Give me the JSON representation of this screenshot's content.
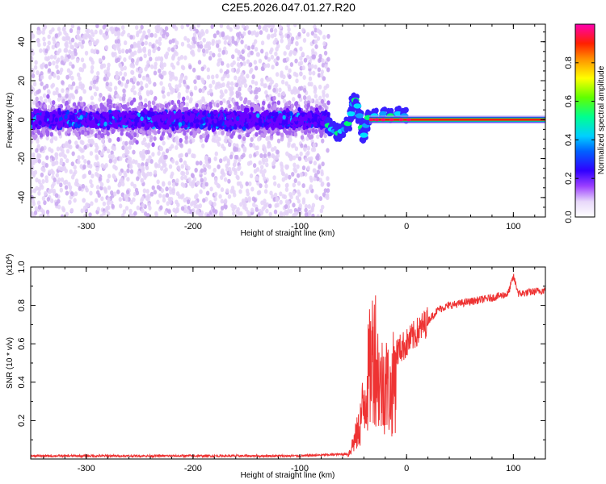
{
  "title": "C2E5.2026.047.01.27.R20",
  "chart_data": [
    {
      "type": "heatmap",
      "xlabel": "Height of straight line (km)",
      "ylabel": "Frequency (Hz)",
      "xlim": [
        -352,
        130
      ],
      "ylim": [
        -50,
        49
      ],
      "xticks": [
        -300,
        -200,
        -100,
        0,
        100
      ],
      "yticks": [
        -40,
        -20,
        0,
        20,
        40
      ],
      "colorbar": {
        "label": "Normalized spectral amplitude",
        "range": [
          0,
          1
        ],
        "ticks": [
          "0.0",
          "0.2",
          "0.4",
          "0.6",
          "0.8"
        ],
        "tick_values": [
          0,
          0.2,
          0.4,
          0.6,
          0.8
        ],
        "colors": [
          "#ffffff",
          "#c8a0f0",
          "#7b00ff",
          "#0000ff",
          "#00c8ff",
          "#00ff80",
          "#80ff00",
          "#ffff00",
          "#ff8000",
          "#ff0000",
          "#ff00a0"
        ]
      },
      "regions": [
        {
          "name": "noise",
          "x_range": [
            -352,
            -73
          ],
          "signal_band_hz": [
            -12,
            12
          ],
          "scatter_hz": [
            -50,
            49
          ]
        },
        {
          "name": "transition",
          "x_range": [
            -73,
            -35
          ]
        },
        {
          "name": "carrier",
          "x_range": [
            -35,
            130
          ],
          "frequency_hz": 0
        }
      ]
    },
    {
      "type": "line",
      "xlabel": "Height of straight line (km)",
      "ylabel": "SNR (10 * v/v)",
      "y_multiplier": "(x10^4)",
      "xlim": [
        -352,
        130
      ],
      "ylim": [
        0,
        1.0
      ],
      "xticks": [
        -300,
        -200,
        -100,
        0,
        100
      ],
      "yticks": [
        0.2,
        0.4,
        0.6,
        0.8,
        1.0
      ],
      "series_color": "#ee3333",
      "envelope_points": [
        [
          -352,
          0.01
        ],
        [
          -100,
          0.01
        ],
        [
          -55,
          0.02
        ],
        [
          -45,
          0.18
        ],
        [
          -40,
          0.35
        ],
        [
          -35,
          0.55
        ],
        [
          -30,
          0.72
        ],
        [
          -25,
          0.45
        ],
        [
          -20,
          0.5
        ],
        [
          -15,
          0.4
        ],
        [
          -10,
          0.55
        ],
        [
          -5,
          0.58
        ],
        [
          0,
          0.6
        ],
        [
          10,
          0.66
        ],
        [
          20,
          0.72
        ],
        [
          30,
          0.78
        ],
        [
          40,
          0.8
        ],
        [
          60,
          0.82
        ],
        [
          80,
          0.84
        ],
        [
          95,
          0.86
        ],
        [
          100,
          0.95
        ],
        [
          105,
          0.86
        ],
        [
          130,
          0.88
        ]
      ]
    }
  ]
}
